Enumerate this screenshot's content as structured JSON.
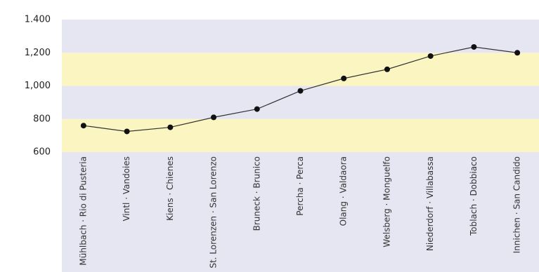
{
  "chart_data": {
    "type": "line",
    "categories": [
      "Mühlbach · Rio di Pusteria",
      "Vintl · Vandoies",
      "Kiens · Chienes",
      "St. Lorenzen · San Lorenzo",
      "Bruneck · Brunico",
      "Percha · Perca",
      "Olang · Valdaora",
      "Welsberg · Monguelfo",
      "Niederdorf · Villabassa",
      "Toblach · Dobbiaco",
      "Innichen · San Candido"
    ],
    "values": [
      760,
      725,
      750,
      810,
      860,
      970,
      1045,
      1100,
      1180,
      1235,
      1200
    ],
    "color": "#333333",
    "ylim": [
      600,
      1400
    ],
    "yticks": [
      600,
      800,
      {
        "value": 1000,
        "label": "1,000"
      },
      {
        "value": 1200,
        "label": "1,200"
      },
      {
        "value": 1400,
        "label": "1.400"
      }
    ],
    "band_colors": [
      "#fbf5c2",
      "#e6e6f2"
    ]
  }
}
